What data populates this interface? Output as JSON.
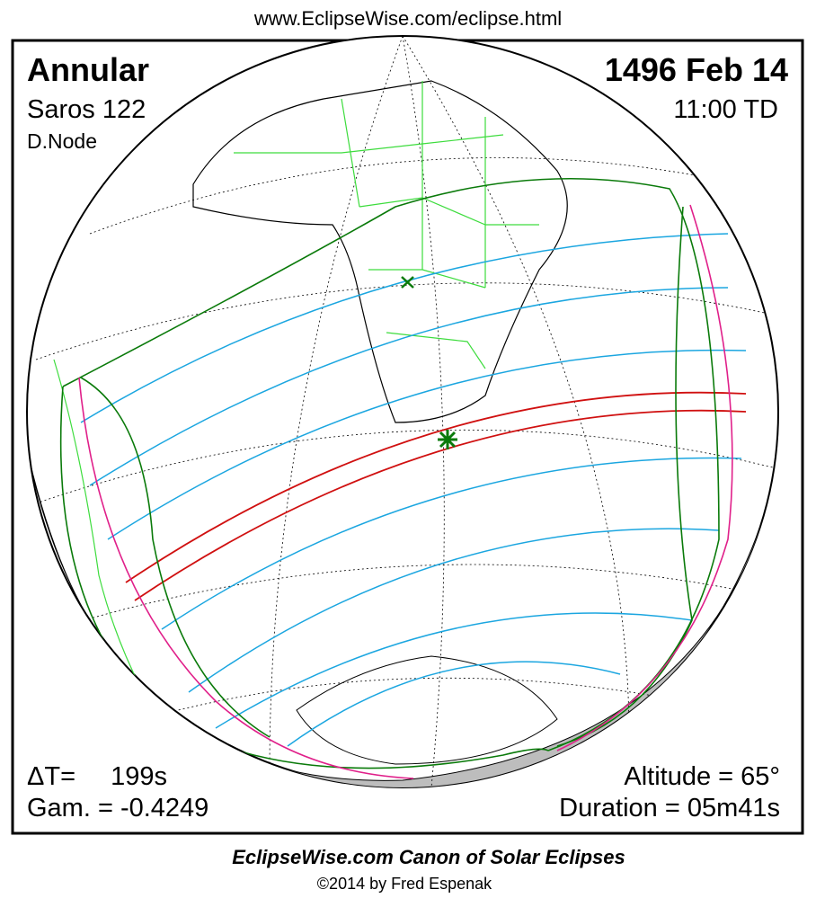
{
  "header": {
    "url": "www.EclipseWise.com/eclipse.html"
  },
  "panel": {
    "eclipse_type": "Annular",
    "saros": "Saros 122",
    "node": "D.Node",
    "date": "1496 Feb 14",
    "time": "11:00 TD",
    "delta_t_label": "ΔT=",
    "delta_t_value": "199s",
    "gamma": "Gam. = -0.4249",
    "altitude": "Altitude = 65°",
    "duration": "Duration = 05m41s"
  },
  "footer": {
    "title": "EclipseWise.com Canon of Solar Eclipses",
    "credit": "©2014 by Fred Espenak"
  }
}
